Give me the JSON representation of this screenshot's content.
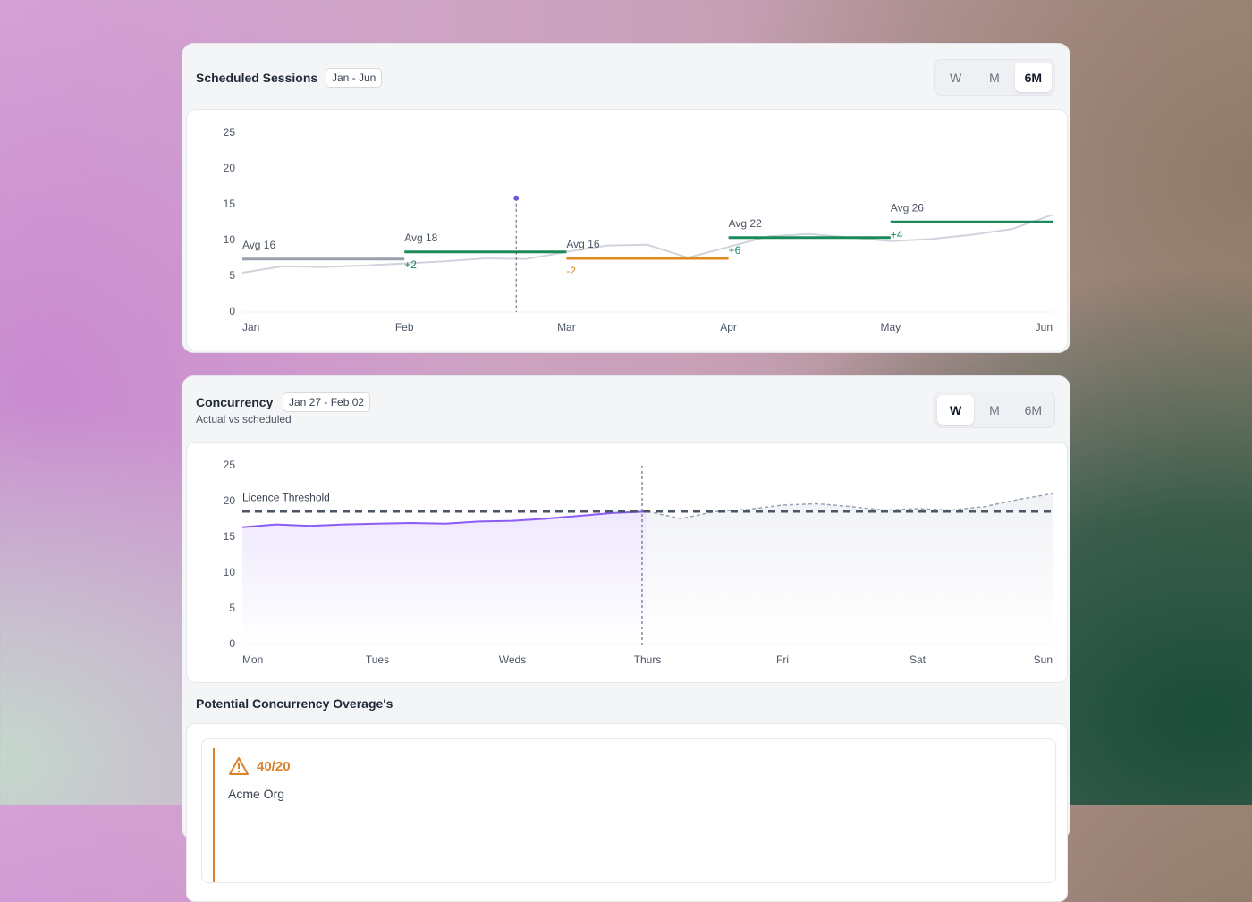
{
  "sessions": {
    "title": "Scheduled Sessions",
    "range": "Jan - Jun",
    "toggle": [
      "W",
      "M",
      "6M"
    ],
    "active": 2,
    "chart_data": {
      "type": "line",
      "categories": [
        "Jan",
        "Feb",
        "Mar",
        "Apr",
        "May",
        "Jun"
      ],
      "xlim": [
        0,
        5
      ],
      "ylim": [
        0,
        25
      ],
      "yticks": [
        0,
        5,
        10,
        15,
        20,
        25
      ],
      "series": [
        {
          "color": "#cfd4dc",
          "x": [
            0,
            0.25,
            0.5,
            0.75,
            1,
            1.25,
            1.5,
            1.75,
            2,
            2.25,
            2.5,
            2.75,
            3,
            3.25,
            3.5,
            3.75,
            4,
            4.25,
            4.5,
            4.75,
            5
          ],
          "values": [
            5.5,
            6.4,
            6.3,
            6.5,
            6.8,
            7.1,
            7.5,
            7.4,
            8.4,
            9.3,
            9.4,
            7.6,
            9.1,
            10.6,
            10.9,
            10.4,
            9.9,
            10.2,
            10.8,
            11.6,
            13.6
          ]
        }
      ],
      "segments": [
        {
          "label": "Avg 16",
          "start": 0,
          "end": 1,
          "value": 7.4,
          "color": "#9aa0ab"
        },
        {
          "label": "Avg 18",
          "delta": "+2",
          "start": 1,
          "end": 2,
          "value": 8.4,
          "color": "#1a8a5a"
        },
        {
          "label": "Avg 16",
          "delta": "-2",
          "start": 2,
          "end": 3,
          "value": 7.5,
          "color": "#e08a1e"
        },
        {
          "label": "Avg 22",
          "delta": "+6",
          "start": 3,
          "end": 4,
          "value": 10.4,
          "color": "#1a8a5a"
        },
        {
          "label": "Avg 26",
          "delta": "+4",
          "start": 4,
          "end": 5,
          "value": 12.6,
          "color": "#1a8a5a"
        }
      ],
      "marker": {
        "x": 1.69,
        "value": 15.9,
        "color": "#6b57d6"
      }
    }
  },
  "concurrency": {
    "title": "Concurrency",
    "range": "Jan 27 - Feb 02",
    "subtitle": "Actual vs scheduled",
    "toggle": [
      "W",
      "M",
      "6M"
    ],
    "active": 0,
    "chart_data": {
      "type": "line",
      "categories": [
        "Mon",
        "Tues",
        "Weds",
        "Thurs",
        "Fri",
        "Sat",
        "Sun"
      ],
      "xlim": [
        0,
        6
      ],
      "ylim": [
        0,
        25
      ],
      "yticks": [
        0,
        5,
        10,
        15,
        20,
        25
      ],
      "series": [
        {
          "color": "#8b5cf6",
          "fill": "#8b5cf6",
          "x": [
            0,
            0.25,
            0.5,
            0.75,
            1,
            1.25,
            1.5,
            1.75,
            2,
            2.25,
            2.5,
            2.75,
            3
          ],
          "values": [
            16.4,
            16.8,
            16.6,
            16.8,
            16.9,
            17.0,
            16.9,
            17.2,
            17.3,
            17.6,
            18.0,
            18.4,
            18.6
          ]
        },
        {
          "color": "#9aa3b5",
          "fill": "#cfd4e0",
          "dashed": true,
          "x": [
            3,
            3.25,
            3.5,
            3.75,
            4,
            4.25,
            4.5,
            4.75,
            5,
            5.25,
            5.5,
            5.75,
            6
          ],
          "values": [
            18.6,
            17.6,
            18.6,
            18.9,
            19.5,
            19.7,
            19.3,
            18.8,
            19.0,
            18.8,
            19.3,
            20.3,
            21.1
          ]
        }
      ],
      "threshold": {
        "label": "Licence Threshold",
        "value": 18.6,
        "color": "#4b5563"
      },
      "marker": {
        "x": 2.96
      }
    }
  },
  "overages": {
    "title": "Potential Concurrency Overage's",
    "items": [
      {
        "count": "40/20",
        "org": "Acme Org"
      }
    ]
  }
}
